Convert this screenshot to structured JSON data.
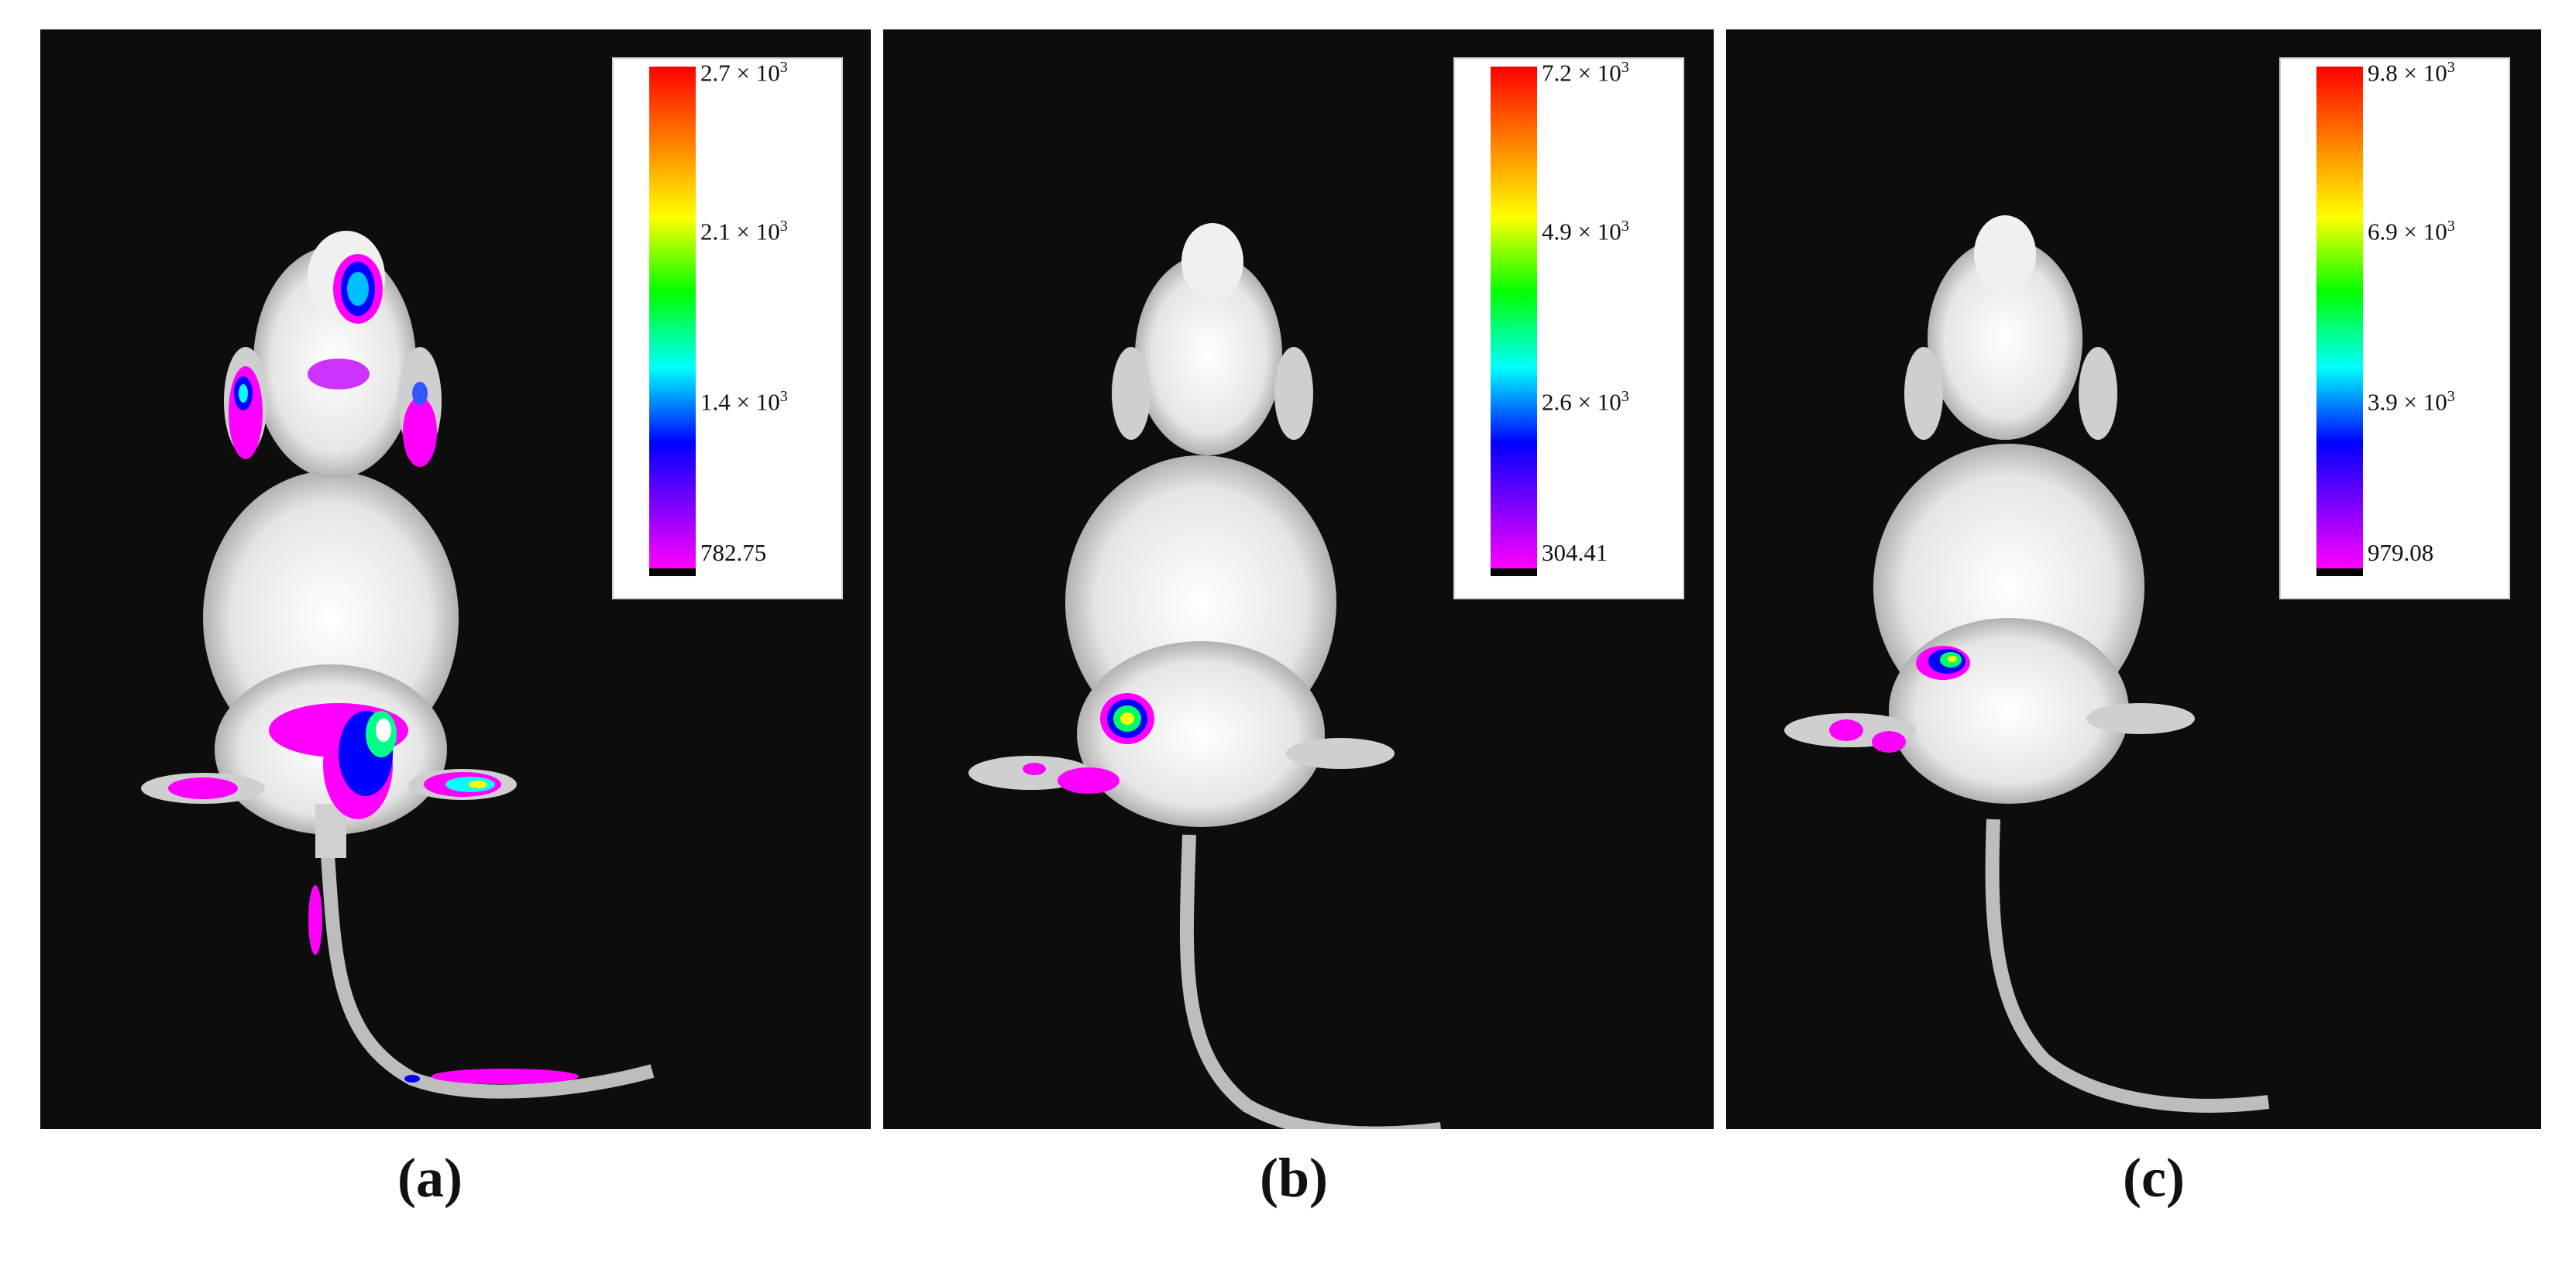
{
  "panels": [
    {
      "caption": "(a)",
      "scale": {
        "max_mantissa": "2.7 × 10",
        "max_exp": "3",
        "t2_mantissa": "2.1 × 10",
        "t2_exp": "3",
        "t3_mantissa": "1.4 × 10",
        "t3_exp": "3",
        "min": "782.75"
      }
    },
    {
      "caption": "(b)",
      "scale": {
        "max_mantissa": "7.2 × 10",
        "max_exp": "3",
        "t2_mantissa": "4.9 × 10",
        "t2_exp": "3",
        "t3_mantissa": "2.6 × 10",
        "t3_exp": "3",
        "min": "304.41"
      }
    },
    {
      "caption": "(c)",
      "scale": {
        "max_mantissa": "9.8 × 10",
        "max_exp": "3",
        "t2_mantissa": "6.9 × 10",
        "t2_exp": "3",
        "t3_mantissa": "3.9 × 10",
        "t3_exp": "3",
        "min": "979.08"
      }
    }
  ],
  "colors": {
    "background": "#0d0d0d",
    "mouse_body": "#e8e8e8",
    "signal_low": "#ff00ff",
    "signal_mid": "#0000ff",
    "signal_high": "#00ff00",
    "signal_peak": "#ff0000"
  }
}
